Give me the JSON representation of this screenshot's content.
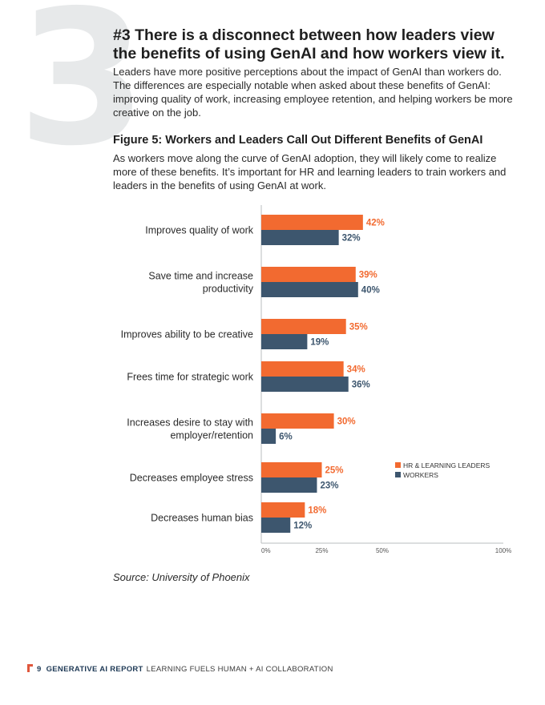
{
  "section_number": "3",
  "header": {
    "title": "#3 There is a disconnect between how leaders view the benefits of using GenAI and how workers view it.",
    "intro": "Leaders have more positive perceptions about the impact of GenAI than workers do. The differences are especially notable when asked about these benefits of GenAI: improving quality of work, increasing employee retention, and helping workers be more creative on the job."
  },
  "figure": {
    "title": "Figure 5: Workers and Leaders Call Out Different Benefits of GenAI",
    "description": "As workers move along the curve of GenAI adoption, they will likely come to realize more of these benefits. It’s important for HR and learning leaders to train workers and leaders in the benefits of using GenAI at work."
  },
  "chart_data": {
    "type": "bar",
    "orientation": "horizontal",
    "categories": [
      [
        "Improves quality of work"
      ],
      [
        "Save time and increase",
        "productivity"
      ],
      [
        "Improves ability to be creative"
      ],
      [
        "Frees time for strategic work"
      ],
      [
        "Increases desire to stay with",
        "employer/retention"
      ],
      [
        "Decreases employee stress"
      ],
      [
        "Decreases human bias"
      ]
    ],
    "series": [
      {
        "name": "HR & LEARNING LEADERS",
        "color": "#f26a30",
        "values": [
          42,
          39,
          35,
          34,
          30,
          25,
          18
        ]
      },
      {
        "name": "WORKERS",
        "color": "#3d566e",
        "values": [
          32,
          40,
          19,
          36,
          6,
          23,
          12
        ]
      }
    ],
    "value_suffix": "%",
    "xlim": [
      0,
      100
    ],
    "x_ticks": [
      0,
      25,
      50,
      100
    ],
    "x_tick_labels": [
      "0%",
      "25%",
      "50%",
      "100%"
    ],
    "legend_position": "right",
    "grid": false
  },
  "source": "Source: University of Phoenix",
  "footer": {
    "page_number": "9",
    "report_name": "GENERATIVE AI REPORT",
    "subtitle": "LEARNING FUELS HUMAN + AI COLLABORATION",
    "accent_color": "#e0573c"
  }
}
